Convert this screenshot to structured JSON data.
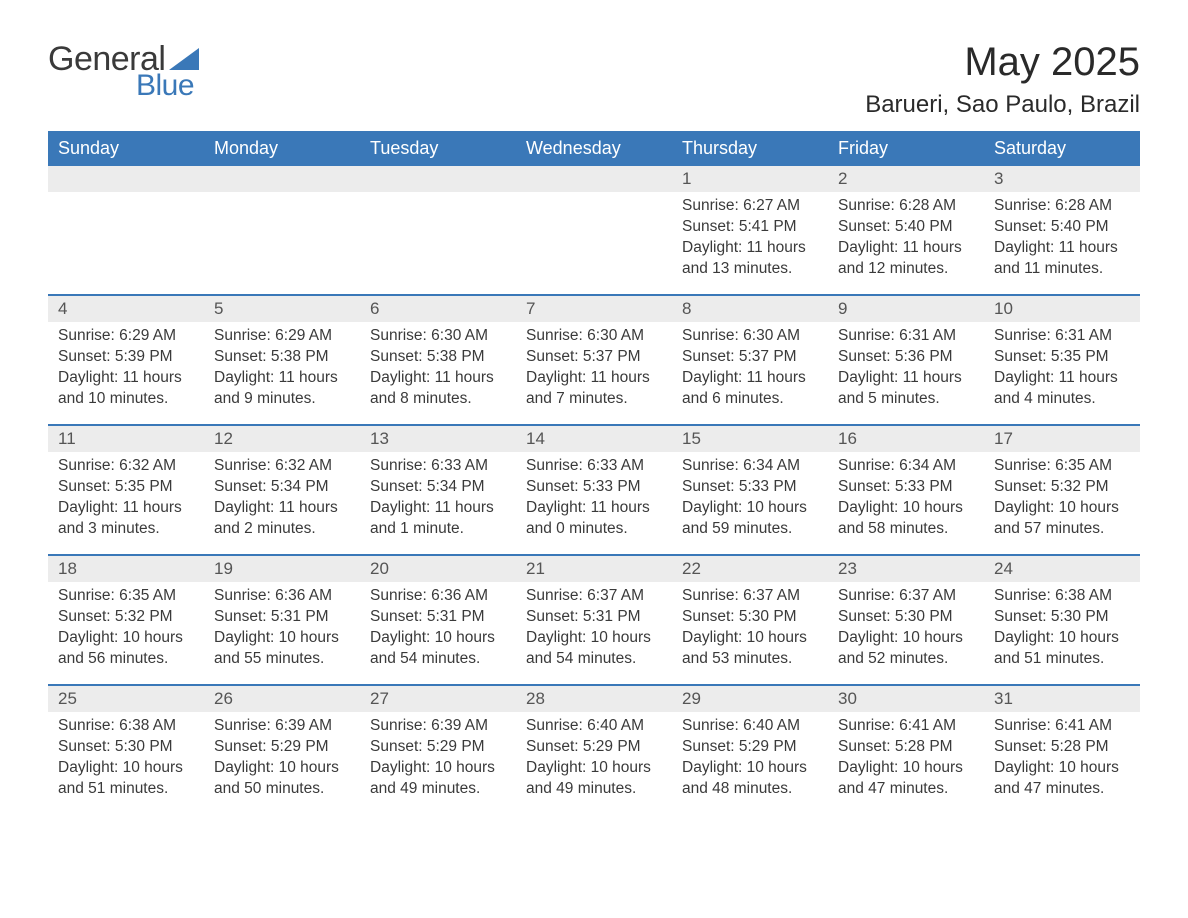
{
  "brand": {
    "general": "General",
    "blue": "Blue"
  },
  "header": {
    "month_title": "May 2025",
    "location": "Barueri, Sao Paulo, Brazil"
  },
  "colors": {
    "accent": "#3a78b8",
    "daynum_bg": "#ececec",
    "text": "#3a3a3a",
    "background": "#ffffff"
  },
  "calendar": {
    "type": "calendar-grid",
    "weekdays": [
      "Sunday",
      "Monday",
      "Tuesday",
      "Wednesday",
      "Thursday",
      "Friday",
      "Saturday"
    ],
    "weeks": [
      [
        null,
        null,
        null,
        null,
        {
          "n": "1",
          "sunrise": "Sunrise: 6:27 AM",
          "sunset": "Sunset: 5:41 PM",
          "day1": "Daylight: 11 hours",
          "day2": "and 13 minutes."
        },
        {
          "n": "2",
          "sunrise": "Sunrise: 6:28 AM",
          "sunset": "Sunset: 5:40 PM",
          "day1": "Daylight: 11 hours",
          "day2": "and 12 minutes."
        },
        {
          "n": "3",
          "sunrise": "Sunrise: 6:28 AM",
          "sunset": "Sunset: 5:40 PM",
          "day1": "Daylight: 11 hours",
          "day2": "and 11 minutes."
        }
      ],
      [
        {
          "n": "4",
          "sunrise": "Sunrise: 6:29 AM",
          "sunset": "Sunset: 5:39 PM",
          "day1": "Daylight: 11 hours",
          "day2": "and 10 minutes."
        },
        {
          "n": "5",
          "sunrise": "Sunrise: 6:29 AM",
          "sunset": "Sunset: 5:38 PM",
          "day1": "Daylight: 11 hours",
          "day2": "and 9 minutes."
        },
        {
          "n": "6",
          "sunrise": "Sunrise: 6:30 AM",
          "sunset": "Sunset: 5:38 PM",
          "day1": "Daylight: 11 hours",
          "day2": "and 8 minutes."
        },
        {
          "n": "7",
          "sunrise": "Sunrise: 6:30 AM",
          "sunset": "Sunset: 5:37 PM",
          "day1": "Daylight: 11 hours",
          "day2": "and 7 minutes."
        },
        {
          "n": "8",
          "sunrise": "Sunrise: 6:30 AM",
          "sunset": "Sunset: 5:37 PM",
          "day1": "Daylight: 11 hours",
          "day2": "and 6 minutes."
        },
        {
          "n": "9",
          "sunrise": "Sunrise: 6:31 AM",
          "sunset": "Sunset: 5:36 PM",
          "day1": "Daylight: 11 hours",
          "day2": "and 5 minutes."
        },
        {
          "n": "10",
          "sunrise": "Sunrise: 6:31 AM",
          "sunset": "Sunset: 5:35 PM",
          "day1": "Daylight: 11 hours",
          "day2": "and 4 minutes."
        }
      ],
      [
        {
          "n": "11",
          "sunrise": "Sunrise: 6:32 AM",
          "sunset": "Sunset: 5:35 PM",
          "day1": "Daylight: 11 hours",
          "day2": "and 3 minutes."
        },
        {
          "n": "12",
          "sunrise": "Sunrise: 6:32 AM",
          "sunset": "Sunset: 5:34 PM",
          "day1": "Daylight: 11 hours",
          "day2": "and 2 minutes."
        },
        {
          "n": "13",
          "sunrise": "Sunrise: 6:33 AM",
          "sunset": "Sunset: 5:34 PM",
          "day1": "Daylight: 11 hours",
          "day2": "and 1 minute."
        },
        {
          "n": "14",
          "sunrise": "Sunrise: 6:33 AM",
          "sunset": "Sunset: 5:33 PM",
          "day1": "Daylight: 11 hours",
          "day2": "and 0 minutes."
        },
        {
          "n": "15",
          "sunrise": "Sunrise: 6:34 AM",
          "sunset": "Sunset: 5:33 PM",
          "day1": "Daylight: 10 hours",
          "day2": "and 59 minutes."
        },
        {
          "n": "16",
          "sunrise": "Sunrise: 6:34 AM",
          "sunset": "Sunset: 5:33 PM",
          "day1": "Daylight: 10 hours",
          "day2": "and 58 minutes."
        },
        {
          "n": "17",
          "sunrise": "Sunrise: 6:35 AM",
          "sunset": "Sunset: 5:32 PM",
          "day1": "Daylight: 10 hours",
          "day2": "and 57 minutes."
        }
      ],
      [
        {
          "n": "18",
          "sunrise": "Sunrise: 6:35 AM",
          "sunset": "Sunset: 5:32 PM",
          "day1": "Daylight: 10 hours",
          "day2": "and 56 minutes."
        },
        {
          "n": "19",
          "sunrise": "Sunrise: 6:36 AM",
          "sunset": "Sunset: 5:31 PM",
          "day1": "Daylight: 10 hours",
          "day2": "and 55 minutes."
        },
        {
          "n": "20",
          "sunrise": "Sunrise: 6:36 AM",
          "sunset": "Sunset: 5:31 PM",
          "day1": "Daylight: 10 hours",
          "day2": "and 54 minutes."
        },
        {
          "n": "21",
          "sunrise": "Sunrise: 6:37 AM",
          "sunset": "Sunset: 5:31 PM",
          "day1": "Daylight: 10 hours",
          "day2": "and 54 minutes."
        },
        {
          "n": "22",
          "sunrise": "Sunrise: 6:37 AM",
          "sunset": "Sunset: 5:30 PM",
          "day1": "Daylight: 10 hours",
          "day2": "and 53 minutes."
        },
        {
          "n": "23",
          "sunrise": "Sunrise: 6:37 AM",
          "sunset": "Sunset: 5:30 PM",
          "day1": "Daylight: 10 hours",
          "day2": "and 52 minutes."
        },
        {
          "n": "24",
          "sunrise": "Sunrise: 6:38 AM",
          "sunset": "Sunset: 5:30 PM",
          "day1": "Daylight: 10 hours",
          "day2": "and 51 minutes."
        }
      ],
      [
        {
          "n": "25",
          "sunrise": "Sunrise: 6:38 AM",
          "sunset": "Sunset: 5:30 PM",
          "day1": "Daylight: 10 hours",
          "day2": "and 51 minutes."
        },
        {
          "n": "26",
          "sunrise": "Sunrise: 6:39 AM",
          "sunset": "Sunset: 5:29 PM",
          "day1": "Daylight: 10 hours",
          "day2": "and 50 minutes."
        },
        {
          "n": "27",
          "sunrise": "Sunrise: 6:39 AM",
          "sunset": "Sunset: 5:29 PM",
          "day1": "Daylight: 10 hours",
          "day2": "and 49 minutes."
        },
        {
          "n": "28",
          "sunrise": "Sunrise: 6:40 AM",
          "sunset": "Sunset: 5:29 PM",
          "day1": "Daylight: 10 hours",
          "day2": "and 49 minutes."
        },
        {
          "n": "29",
          "sunrise": "Sunrise: 6:40 AM",
          "sunset": "Sunset: 5:29 PM",
          "day1": "Daylight: 10 hours",
          "day2": "and 48 minutes."
        },
        {
          "n": "30",
          "sunrise": "Sunrise: 6:41 AM",
          "sunset": "Sunset: 5:28 PM",
          "day1": "Daylight: 10 hours",
          "day2": "and 47 minutes."
        },
        {
          "n": "31",
          "sunrise": "Sunrise: 6:41 AM",
          "sunset": "Sunset: 5:28 PM",
          "day1": "Daylight: 10 hours",
          "day2": "and 47 minutes."
        }
      ]
    ]
  }
}
